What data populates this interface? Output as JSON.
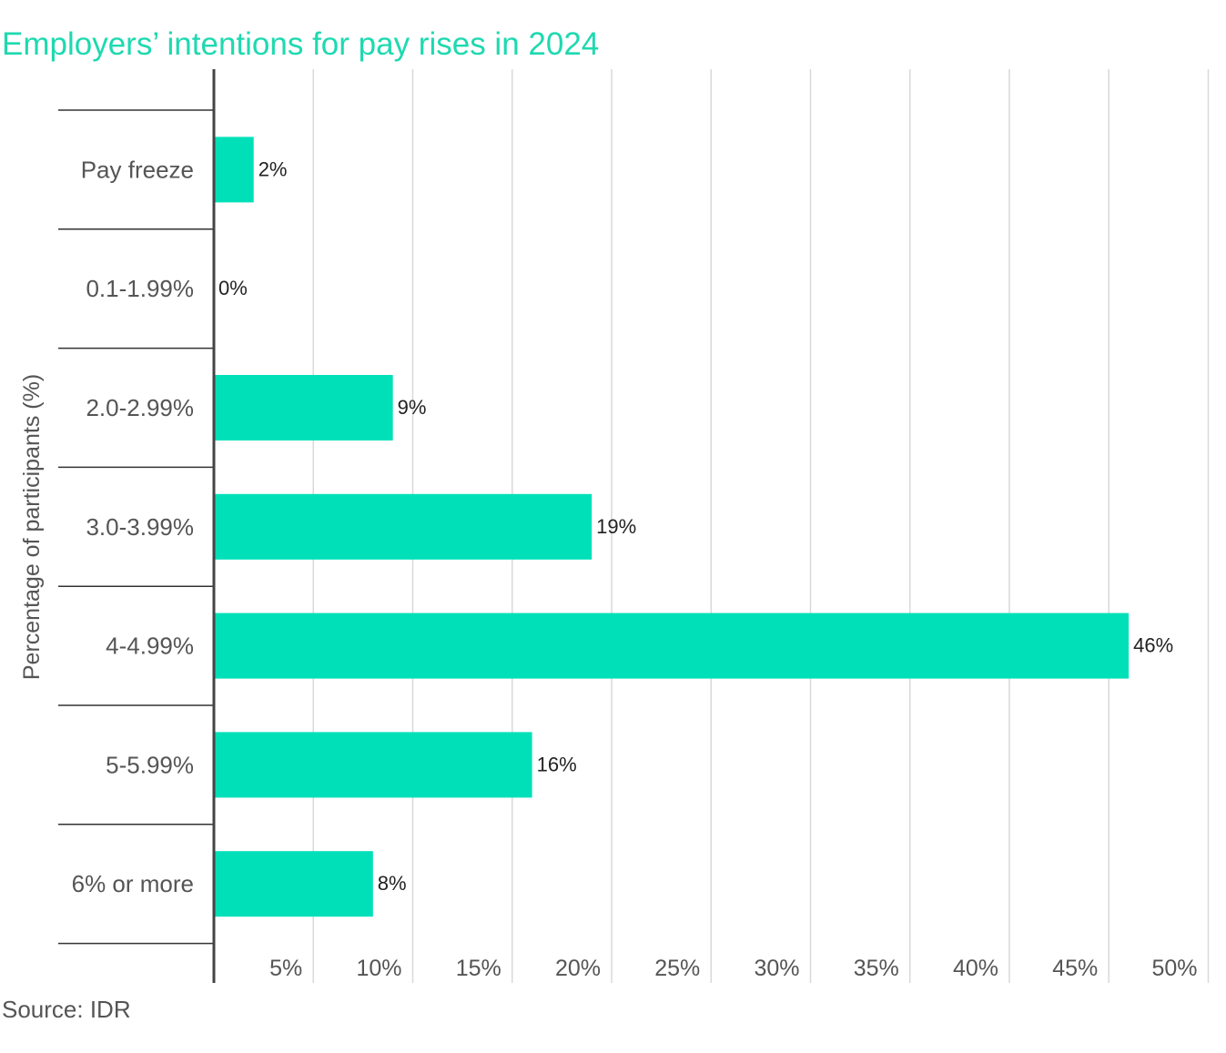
{
  "chart_data": {
    "type": "bar",
    "orientation": "horizontal",
    "title": "Employers’ intentions for pay rises in 2024",
    "ylabel": "Percentage of participants (%)",
    "xlabel": "",
    "categories": [
      "Pay freeze",
      "0.1-1.99%",
      "2.0-2.99%",
      "3.0-3.99%",
      "4-4.99%",
      "5-5.99%",
      "6% or more"
    ],
    "values": [
      2,
      0,
      9,
      19,
      46,
      16,
      8
    ],
    "value_labels": [
      "2%",
      "0%",
      "9%",
      "19%",
      "46%",
      "16%",
      "8%"
    ],
    "xlim": [
      0,
      50
    ],
    "x_ticks": [
      5,
      10,
      15,
      20,
      25,
      30,
      35,
      40,
      45,
      50
    ],
    "x_tick_labels": [
      "5%",
      "10%",
      "15%",
      "20%",
      "25%",
      "30%",
      "35%",
      "40%",
      "45%",
      "50%"
    ],
    "grid": true,
    "legend": "none"
  },
  "source": "Source: IDR",
  "colors": {
    "bar": "#00e0b8",
    "title": "#1ed9b0",
    "gridline": "#d9d9d9",
    "axis": "#444444",
    "separator": "#333333"
  }
}
